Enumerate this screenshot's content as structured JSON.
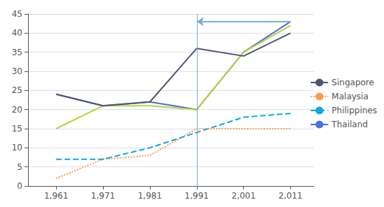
{
  "chart_data": {
    "type": "line",
    "x": [
      1961,
      1971,
      1981,
      1991,
      2001,
      2011
    ],
    "series": [
      {
        "name": "Thailand",
        "values": [
          24,
          21,
          22,
          20,
          35,
          43
        ],
        "line_style": "solid"
      },
      {
        "values": [
          15,
          21,
          21,
          20,
          35,
          42
        ],
        "line_style": "solid"
      },
      {
        "name": "Singapore",
        "values": [
          24,
          21,
          22,
          36,
          34,
          40
        ],
        "line_style": "solid"
      },
      {
        "name": "Malaysia",
        "values": [
          2,
          7,
          8,
          15,
          15,
          15
        ],
        "line_style": "dotted"
      },
      {
        "name": "Philippines",
        "values": [
          7,
          7,
          10,
          14,
          18,
          19
        ],
        "line_style": "dashed"
      }
    ],
    "legend_order": [
      "Singapore",
      "Malaysia",
      "Philippines",
      "Thailand"
    ],
    "vline": {
      "x": 1991,
      "color": "#7aadd4"
    },
    "arrow": {
      "x_start": 2011,
      "x_end": 1991,
      "y": 43,
      "color": "#7aadd4"
    },
    "xlim": [
      1955,
      2016
    ],
    "xticks": [
      1961,
      1971,
      1981,
      1991,
      2001,
      2011
    ],
    "ylim": [
      0,
      45
    ],
    "yticks": [
      0,
      5,
      10,
      15,
      20,
      25,
      30,
      35,
      40,
      45
    ],
    "grid": true,
    "legend": "right"
  }
}
